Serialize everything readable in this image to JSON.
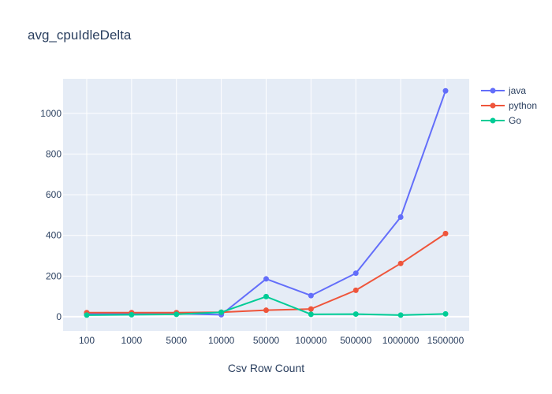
{
  "chart_data": {
    "type": "line",
    "title": "avg_cpuIdleDelta",
    "xlabel": "Csv Row Count",
    "ylabel": "",
    "categories": [
      "100",
      "1000",
      "5000",
      "10000",
      "50000",
      "100000",
      "500000",
      "1000000",
      "1500000"
    ],
    "ylim": [
      -70,
      1170
    ],
    "yticks": [
      0,
      200,
      400,
      600,
      800,
      1000
    ],
    "ytick_labels": [
      "0",
      "200",
      "400",
      "600",
      "800",
      "1000"
    ],
    "grid": true,
    "legend_position": "top-right",
    "series": [
      {
        "name": "java",
        "color": "#636efa",
        "values": [
          15,
          15,
          15,
          10,
          186,
          104,
          214,
          490,
          1111
        ]
      },
      {
        "name": "python",
        "color": "#ef553b",
        "values": [
          20,
          20,
          20,
          22,
          32,
          38,
          130,
          262,
          409
        ]
      },
      {
        "name": "Go",
        "color": "#00cc96",
        "values": [
          8,
          10,
          12,
          22,
          99,
          12,
          13,
          8,
          14
        ]
      }
    ]
  }
}
